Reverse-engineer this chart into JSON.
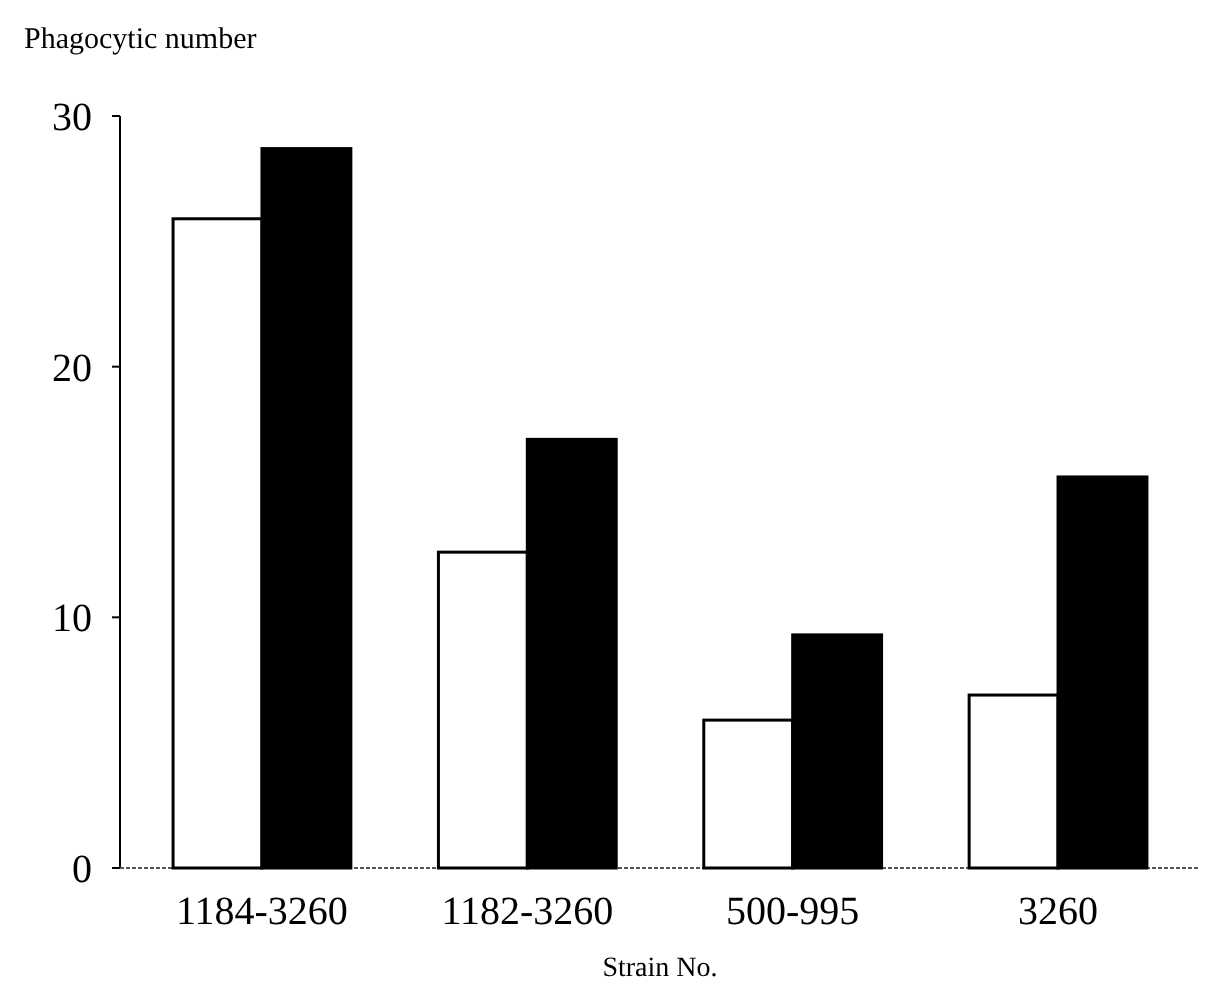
{
  "chart_data": {
    "type": "bar",
    "ylabel": "Phagocytic number",
    "xlabel": "Strain No.",
    "categories": [
      "1184-3260",
      "1182-3260",
      "500-995",
      "3260"
    ],
    "series": [
      {
        "color": "#ffffff",
        "values": [
          25.9,
          12.6,
          5.9,
          6.9
        ]
      },
      {
        "color": "#000000",
        "values": [
          28.7,
          17.1,
          9.3,
          15.6
        ]
      }
    ],
    "ylim": [
      0,
      30
    ],
    "yticks": [
      0,
      10,
      20,
      30
    ]
  }
}
